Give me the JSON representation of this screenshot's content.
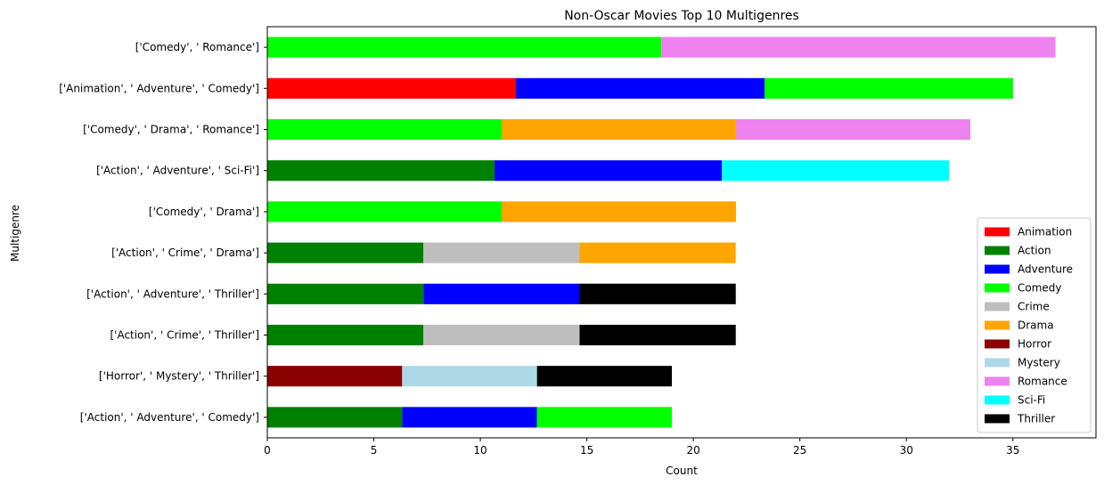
{
  "chart_data": {
    "type": "bar",
    "orientation": "horizontal",
    "stacked": true,
    "title": "Non-Oscar Movies Top 10 Multigenres",
    "xlabel": "Count",
    "ylabel": "Multigenre",
    "xlim": [
      0,
      38.9
    ],
    "xticks": [
      0,
      5,
      10,
      15,
      20,
      25,
      30,
      35
    ],
    "grid": false,
    "legend_position": "lower-right",
    "categories": [
      "['Action', ' Adventure', ' Comedy']",
      "['Horror', ' Mystery', ' Thriller']",
      "['Action', ' Crime', ' Thriller']",
      "['Action', ' Adventure', ' Thriller']",
      "['Action', ' Crime', ' Drama']",
      "['Comedy', ' Drama']",
      "['Action', ' Adventure', ' Sci-Fi']",
      "['Comedy', ' Drama', ' Romance']",
      "['Animation', ' Adventure', ' Comedy']",
      "['Comedy', ' Romance']"
    ],
    "series": [
      {
        "name": "Animation",
        "color": "#ff0000",
        "values": [
          0,
          0,
          0,
          0,
          0,
          0,
          0,
          0,
          11.67,
          0
        ]
      },
      {
        "name": "Action",
        "color": "#008000",
        "values": [
          6.33,
          0,
          7.33,
          7.33,
          7.33,
          0,
          10.67,
          0,
          0,
          0
        ]
      },
      {
        "name": "Adventure",
        "color": "#0000ff",
        "values": [
          6.33,
          0,
          0,
          7.33,
          0,
          0,
          10.67,
          0,
          11.67,
          0
        ]
      },
      {
        "name": "Comedy",
        "color": "#00ff00",
        "values": [
          6.33,
          0,
          0,
          0,
          0,
          11,
          0,
          11,
          11.67,
          18.5
        ]
      },
      {
        "name": "Crime",
        "color": "#bebebe",
        "values": [
          0,
          0,
          7.33,
          0,
          7.33,
          0,
          0,
          0,
          0,
          0
        ]
      },
      {
        "name": "Drama",
        "color": "#ffa500",
        "values": [
          0,
          0,
          0,
          0,
          7.33,
          11,
          0,
          11,
          0,
          0
        ]
      },
      {
        "name": "Horror",
        "color": "#8b0000",
        "values": [
          0,
          6.33,
          0,
          0,
          0,
          0,
          0,
          0,
          0,
          0
        ]
      },
      {
        "name": "Mystery",
        "color": "#add8e6",
        "values": [
          0,
          6.33,
          0,
          0,
          0,
          0,
          0,
          0,
          0,
          0
        ]
      },
      {
        "name": "Romance",
        "color": "#ee82ee",
        "values": [
          0,
          0,
          0,
          0,
          0,
          0,
          0,
          11,
          0,
          18.5
        ]
      },
      {
        "name": "Sci-Fi",
        "color": "#00ffff",
        "values": [
          0,
          0,
          0,
          0,
          0,
          0,
          10.67,
          0,
          0,
          0
        ]
      },
      {
        "name": "Thriller",
        "color": "#000000",
        "values": [
          0,
          6.33,
          7.33,
          7.33,
          0,
          0,
          0,
          0,
          0,
          0
        ]
      }
    ]
  }
}
